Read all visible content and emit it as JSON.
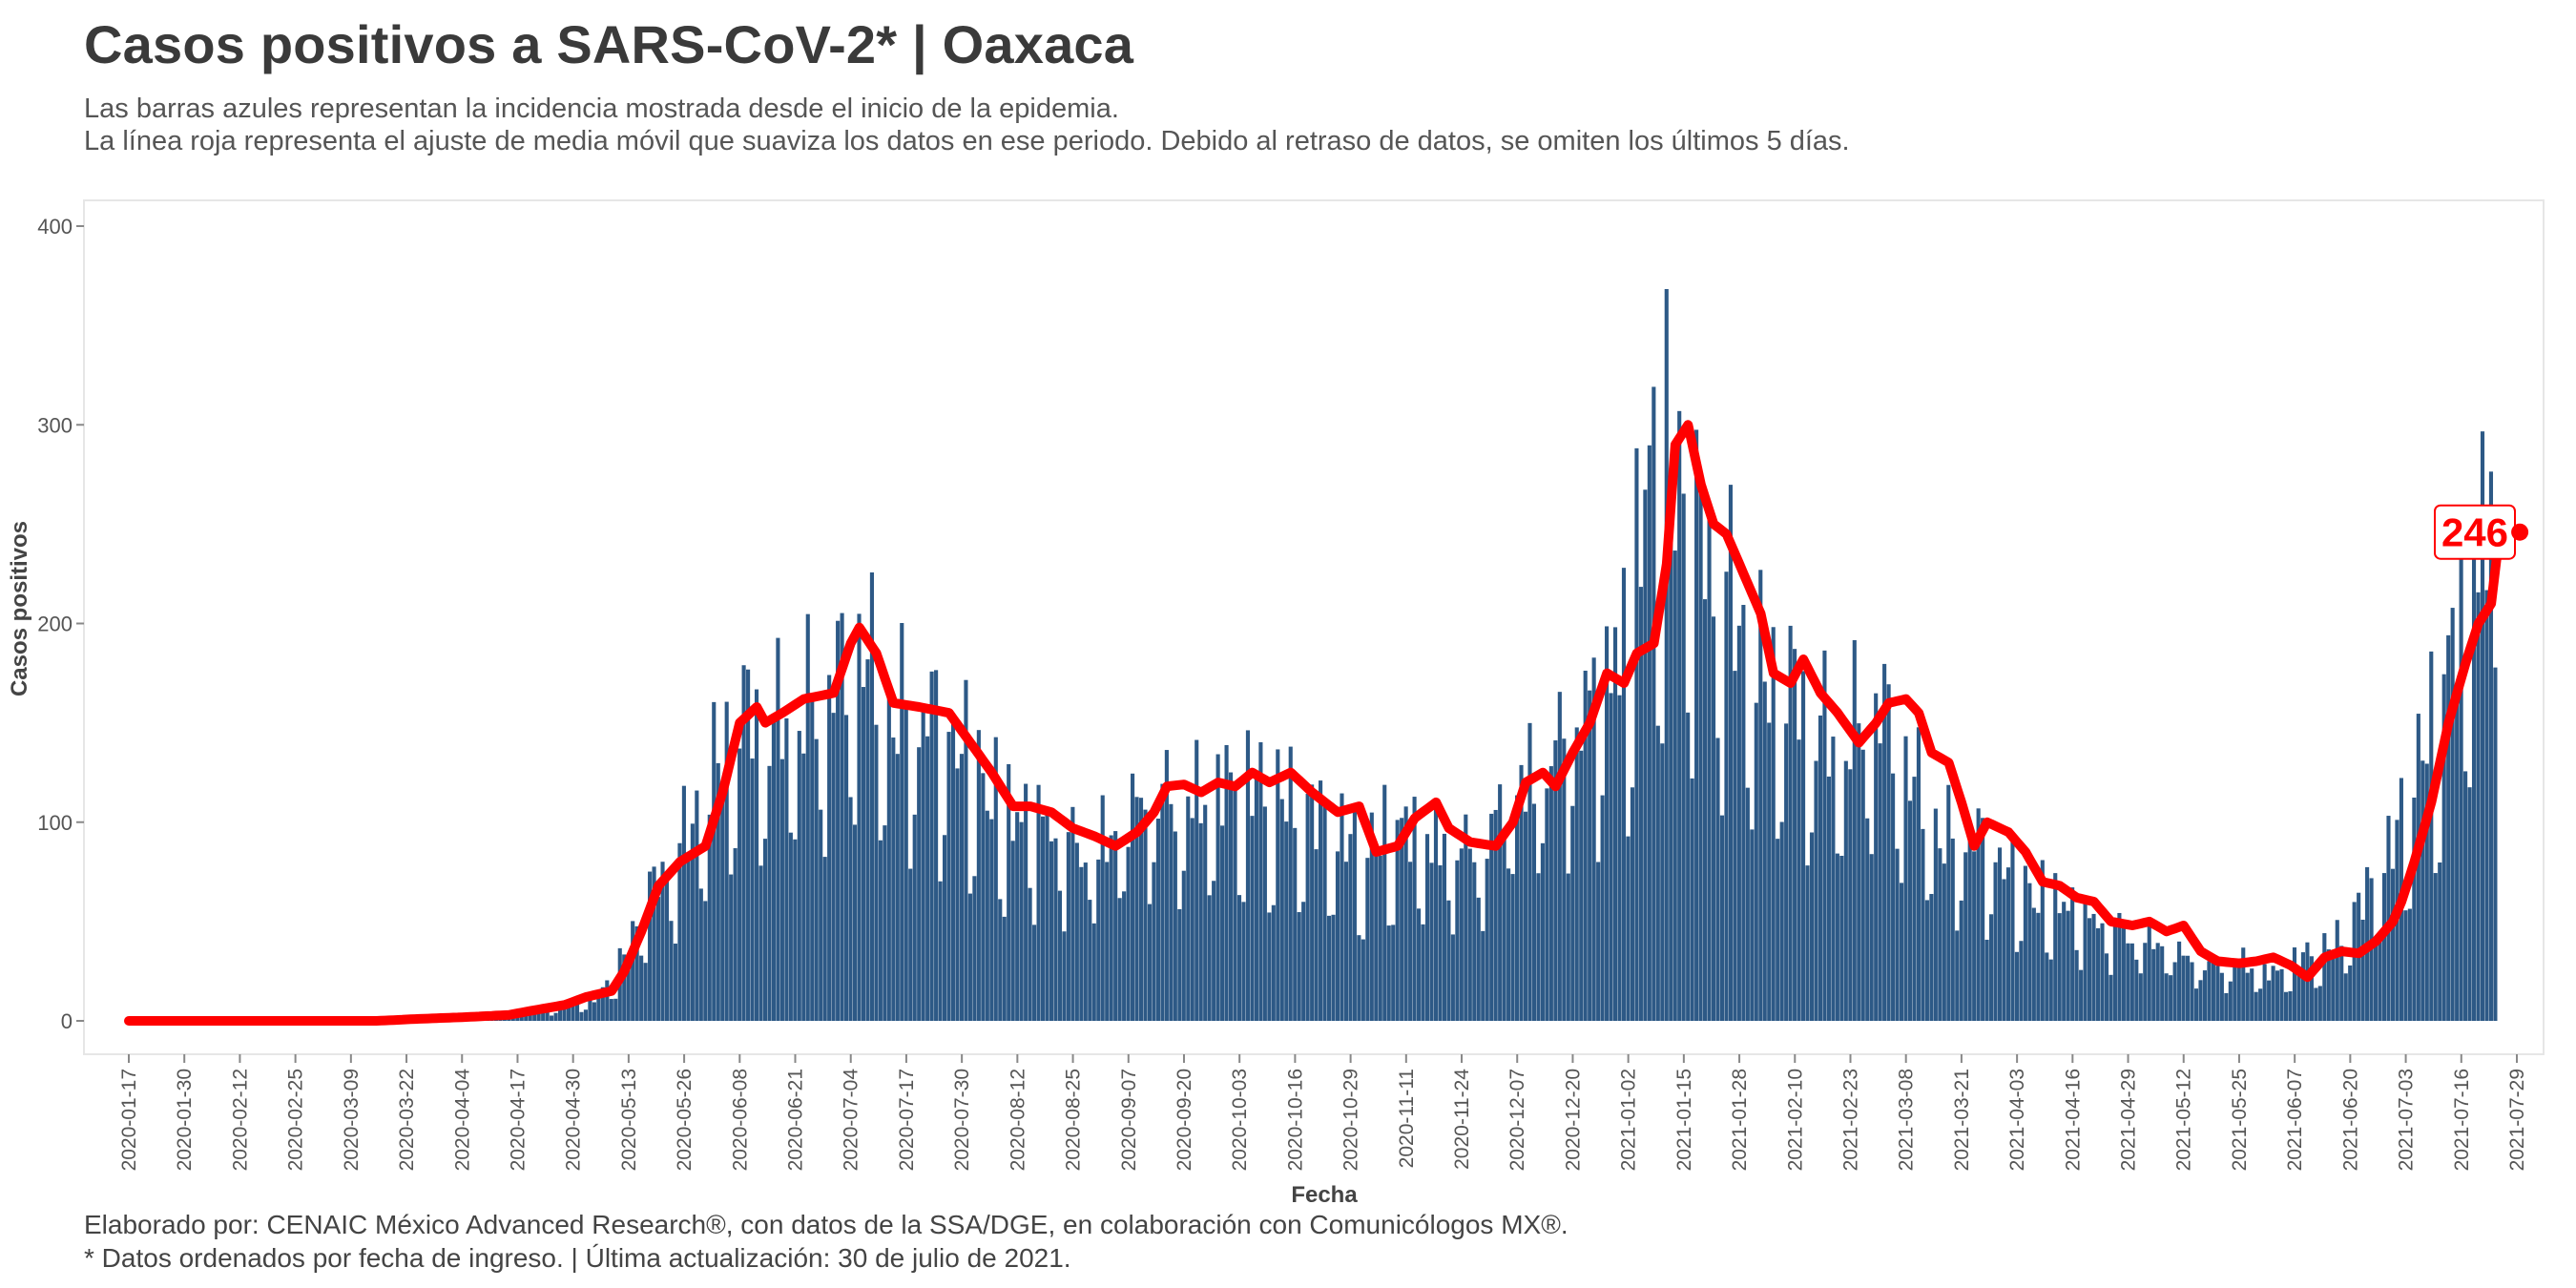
{
  "header": {
    "title": "Casos positivos a SARS-CoV-2* | Oaxaca",
    "subtitle_line1": "Las barras azules representan la incidencia mostrada desde el inicio de la epidemia.",
    "subtitle_line2": "La línea roja representa el ajuste de media móvil que suaviza los datos en ese periodo. Debido al retraso de datos, se omiten los últimos 5 días."
  },
  "footer": {
    "credits": "Elaborado por: CENAIC México Advanced Research®, con datos de la SSA/DGE, en colaboración con Comunicólogos MX®.",
    "note": "* Datos ordenados por fecha de ingreso. | Última actualización: 30 de julio de 2021."
  },
  "colors": {
    "bars": "#2d5986",
    "line": "#ff0000",
    "axis_text": "#555555"
  },
  "chart_data": {
    "type": "bar",
    "title": "Casos positivos a SARS-CoV-2* | Oaxaca",
    "xlabel": "Fecha",
    "ylabel": "Casos positivos",
    "x_start": "2020-01-17",
    "x_end": "2021-07-29",
    "ylim": [
      -20,
      410
    ],
    "y_ticks": [
      0,
      100,
      200,
      300,
      400
    ],
    "x_ticks": [
      "2020-01-17",
      "2020-01-30",
      "2020-02-12",
      "2020-02-25",
      "2020-03-09",
      "2020-03-22",
      "2020-04-04",
      "2020-04-17",
      "2020-04-30",
      "2020-05-13",
      "2020-05-26",
      "2020-06-08",
      "2020-06-21",
      "2020-07-04",
      "2020-07-17",
      "2020-07-30",
      "2020-08-12",
      "2020-08-25",
      "2020-09-07",
      "2020-09-20",
      "2020-10-03",
      "2020-10-16",
      "2020-10-29",
      "2020-11-11",
      "2020-11-24",
      "2020-12-07",
      "2020-12-20",
      "2021-01-02",
      "2021-01-15",
      "2021-01-28",
      "2021-02-10",
      "2021-02-23",
      "2021-03-08",
      "2021-03-21",
      "2021-04-03",
      "2021-04-16",
      "2021-04-29",
      "2021-05-12",
      "2021-05-25",
      "2021-06-07",
      "2021-06-20",
      "2021-07-03",
      "2021-07-16",
      "2021-07-29"
    ],
    "grid": false,
    "series": [
      {
        "kind": "bar",
        "keyframes": [
          [
            "2020-01-17",
            0
          ],
          [
            "2020-03-20",
            1
          ],
          [
            "2020-04-10",
            3
          ],
          [
            "2020-04-25",
            6
          ],
          [
            "2020-05-05",
            12
          ],
          [
            "2020-05-10",
            25
          ],
          [
            "2020-05-17",
            65
          ],
          [
            "2020-05-24",
            90
          ],
          [
            "2020-06-01",
            130
          ],
          [
            "2020-06-08",
            165
          ],
          [
            "2020-06-15",
            160
          ],
          [
            "2020-06-22",
            170
          ],
          [
            "2020-06-29",
            180
          ],
          [
            "2020-07-07",
            205
          ],
          [
            "2020-07-12",
            170
          ],
          [
            "2020-07-19",
            170
          ],
          [
            "2020-07-26",
            160
          ],
          [
            "2020-08-02",
            140
          ],
          [
            "2020-08-09",
            115
          ],
          [
            "2020-08-16",
            112
          ],
          [
            "2020-08-23",
            100
          ],
          [
            "2020-08-30",
            95
          ],
          [
            "2020-09-06",
            110
          ],
          [
            "2020-09-13",
            125
          ],
          [
            "2020-09-20",
            120
          ],
          [
            "2020-09-27",
            125
          ],
          [
            "2020-10-04",
            128
          ],
          [
            "2020-10-11",
            122
          ],
          [
            "2020-10-18",
            115
          ],
          [
            "2020-10-25",
            105
          ],
          [
            "2020-11-01",
            90
          ],
          [
            "2020-11-08",
            105
          ],
          [
            "2020-11-15",
            100
          ],
          [
            "2020-11-22",
            95
          ],
          [
            "2020-11-29",
            95
          ],
          [
            "2020-12-06",
            130
          ],
          [
            "2020-12-13",
            140
          ],
          [
            "2020-12-20",
            165
          ],
          [
            "2020-12-27",
            185
          ],
          [
            "2021-01-03",
            220
          ],
          [
            "2021-01-06",
            300
          ],
          [
            "2021-01-12",
            310
          ],
          [
            "2021-01-19",
            260
          ],
          [
            "2021-01-26",
            230
          ],
          [
            "2021-02-02",
            190
          ],
          [
            "2021-02-07",
            185
          ],
          [
            "2021-02-14",
            165
          ],
          [
            "2021-02-21",
            150
          ],
          [
            "2021-02-28",
            175
          ],
          [
            "2021-03-05",
            155
          ],
          [
            "2021-03-10",
            130
          ],
          [
            "2021-03-17",
            100
          ],
          [
            "2021-03-24",
            100
          ],
          [
            "2021-03-31",
            85
          ],
          [
            "2021-04-07",
            70
          ],
          [
            "2021-04-14",
            65
          ],
          [
            "2021-04-21",
            55
          ],
          [
            "2021-04-28",
            50
          ],
          [
            "2021-05-05",
            45
          ],
          [
            "2021-05-12",
            35
          ],
          [
            "2021-05-19",
            30
          ],
          [
            "2021-05-26",
            32
          ],
          [
            "2021-06-02",
            25
          ],
          [
            "2021-06-09",
            35
          ],
          [
            "2021-06-16",
            40
          ],
          [
            "2021-06-23",
            65
          ],
          [
            "2021-06-30",
            95
          ],
          [
            "2021-07-05",
            130
          ],
          [
            "2021-07-10",
            165
          ],
          [
            "2021-07-14",
            200
          ],
          [
            "2021-07-19",
            250
          ],
          [
            "2021-07-24",
            285
          ]
        ]
      },
      {
        "kind": "line",
        "keyframes": [
          [
            "2020-01-17",
            0
          ],
          [
            "2020-03-15",
            0
          ],
          [
            "2020-03-25",
            1
          ],
          [
            "2020-04-06",
            2
          ],
          [
            "2020-04-15",
            3
          ],
          [
            "2020-04-20",
            5
          ],
          [
            "2020-04-28",
            8
          ],
          [
            "2020-05-03",
            12
          ],
          [
            "2020-05-09",
            15
          ],
          [
            "2020-05-12",
            25
          ],
          [
            "2020-05-16",
            45
          ],
          [
            "2020-05-20",
            68
          ],
          [
            "2020-05-25",
            80
          ],
          [
            "2020-05-31",
            88
          ],
          [
            "2020-06-04",
            115
          ],
          [
            "2020-06-08",
            150
          ],
          [
            "2020-06-12",
            158
          ],
          [
            "2020-06-14",
            150
          ],
          [
            "2020-06-18",
            155
          ],
          [
            "2020-06-23",
            162
          ],
          [
            "2020-06-30",
            165
          ],
          [
            "2020-07-04",
            190
          ],
          [
            "2020-07-06",
            198
          ],
          [
            "2020-07-10",
            185
          ],
          [
            "2020-07-14",
            160
          ],
          [
            "2020-07-20",
            158
          ],
          [
            "2020-07-27",
            155
          ],
          [
            "2020-08-01",
            140
          ],
          [
            "2020-08-06",
            125
          ],
          [
            "2020-08-11",
            108
          ],
          [
            "2020-08-15",
            108
          ],
          [
            "2020-08-20",
            105
          ],
          [
            "2020-08-25",
            97
          ],
          [
            "2020-08-30",
            93
          ],
          [
            "2020-09-04",
            88
          ],
          [
            "2020-09-09",
            95
          ],
          [
            "2020-09-13",
            105
          ],
          [
            "2020-09-16",
            118
          ],
          [
            "2020-09-20",
            119
          ],
          [
            "2020-09-24",
            115
          ],
          [
            "2020-09-28",
            120
          ],
          [
            "2020-10-02",
            118
          ],
          [
            "2020-10-06",
            125
          ],
          [
            "2020-10-10",
            120
          ],
          [
            "2020-10-15",
            125
          ],
          [
            "2020-10-20",
            115
          ],
          [
            "2020-10-26",
            105
          ],
          [
            "2020-10-31",
            108
          ],
          [
            "2020-11-04",
            85
          ],
          [
            "2020-11-09",
            88
          ],
          [
            "2020-11-13",
            102
          ],
          [
            "2020-11-18",
            110
          ],
          [
            "2020-11-21",
            97
          ],
          [
            "2020-11-26",
            90
          ],
          [
            "2020-12-02",
            88
          ],
          [
            "2020-12-06",
            100
          ],
          [
            "2020-12-09",
            120
          ],
          [
            "2020-12-13",
            125
          ],
          [
            "2020-12-16",
            118
          ],
          [
            "2020-12-20",
            135
          ],
          [
            "2020-12-24",
            150
          ],
          [
            "2020-12-28",
            175
          ],
          [
            "2021-01-01",
            170
          ],
          [
            "2021-01-04",
            185
          ],
          [
            "2021-01-08",
            190
          ],
          [
            "2021-01-11",
            230
          ],
          [
            "2021-01-13",
            290
          ],
          [
            "2021-01-16",
            300
          ],
          [
            "2021-01-19",
            270
          ],
          [
            "2021-01-22",
            250
          ],
          [
            "2021-01-25",
            245
          ],
          [
            "2021-01-29",
            225
          ],
          [
            "2021-02-02",
            205
          ],
          [
            "2021-02-05",
            175
          ],
          [
            "2021-02-09",
            170
          ],
          [
            "2021-02-12",
            182
          ],
          [
            "2021-02-16",
            165
          ],
          [
            "2021-02-20",
            155
          ],
          [
            "2021-02-25",
            140
          ],
          [
            "2021-03-01",
            150
          ],
          [
            "2021-03-04",
            160
          ],
          [
            "2021-03-08",
            162
          ],
          [
            "2021-03-11",
            155
          ],
          [
            "2021-03-14",
            135
          ],
          [
            "2021-03-18",
            130
          ],
          [
            "2021-03-21",
            110
          ],
          [
            "2021-03-24",
            88
          ],
          [
            "2021-03-27",
            100
          ],
          [
            "2021-04-01",
            95
          ],
          [
            "2021-04-05",
            85
          ],
          [
            "2021-04-09",
            70
          ],
          [
            "2021-04-13",
            68
          ],
          [
            "2021-04-17",
            62
          ],
          [
            "2021-04-21",
            60
          ],
          [
            "2021-04-25",
            50
          ],
          [
            "2021-04-30",
            48
          ],
          [
            "2021-05-04",
            50
          ],
          [
            "2021-05-08",
            45
          ],
          [
            "2021-05-12",
            48
          ],
          [
            "2021-05-16",
            35
          ],
          [
            "2021-05-20",
            30
          ],
          [
            "2021-05-25",
            29
          ],
          [
            "2021-05-29",
            30
          ],
          [
            "2021-06-02",
            32
          ],
          [
            "2021-06-06",
            28
          ],
          [
            "2021-06-10",
            22
          ],
          [
            "2021-06-14",
            32
          ],
          [
            "2021-06-18",
            35
          ],
          [
            "2021-06-22",
            34
          ],
          [
            "2021-06-26",
            40
          ],
          [
            "2021-06-30",
            50
          ],
          [
            "2021-07-02",
            60
          ],
          [
            "2021-07-05",
            80
          ],
          [
            "2021-07-09",
            110
          ],
          [
            "2021-07-13",
            150
          ],
          [
            "2021-07-17",
            180
          ],
          [
            "2021-07-20",
            200
          ],
          [
            "2021-07-23",
            210
          ],
          [
            "2021-07-25",
            246
          ]
        ]
      }
    ],
    "annotation": {
      "date": "2021-07-25",
      "value": 246,
      "label": "246"
    }
  }
}
